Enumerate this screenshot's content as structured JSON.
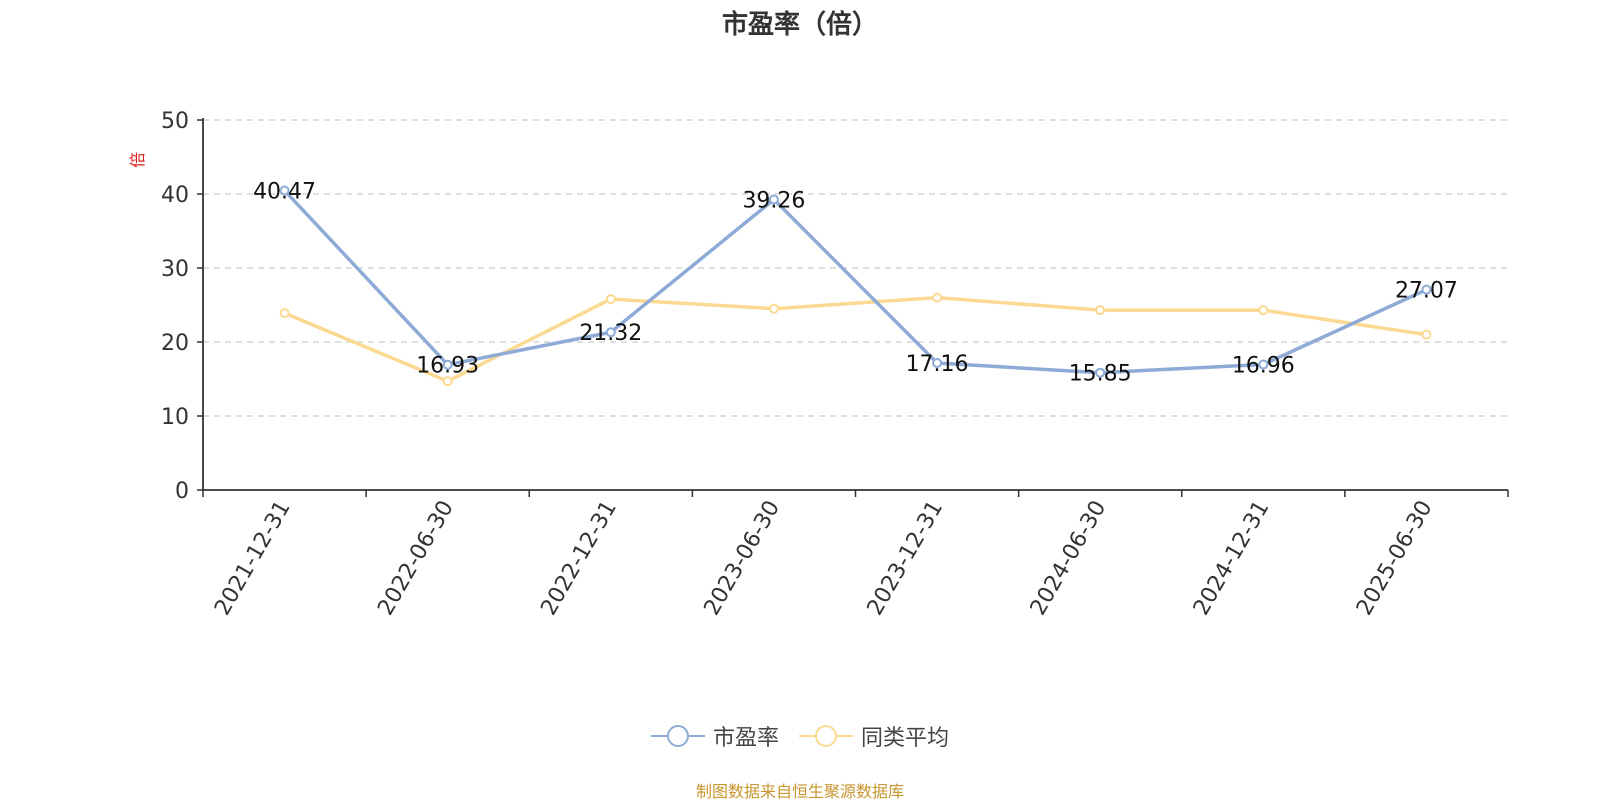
{
  "chart_data": {
    "type": "line",
    "title": "市盈率（倍）",
    "ylabel": "倍",
    "categories": [
      "2021-12-31",
      "2022-06-30",
      "2022-12-31",
      "2023-06-30",
      "2023-12-31",
      "2024-06-30",
      "2024-12-31",
      "2025-06-30"
    ],
    "yticks": [
      "0",
      "10",
      "20",
      "30",
      "40",
      "50"
    ],
    "ylim": [
      0,
      50
    ],
    "grid": true,
    "legend_position": "bottom",
    "series": [
      {
        "name": "市盈率",
        "color": "#8eaad6",
        "values": [
          40.47,
          16.93,
          21.32,
          39.26,
          17.16,
          15.85,
          16.96,
          27.07
        ],
        "labels": [
          "40.47",
          "16.93",
          "21.32",
          "39.26",
          "17.16",
          "15.85",
          "16.96",
          "27.07"
        ]
      },
      {
        "name": "同类平均",
        "color": "#fbd992",
        "values": [
          23.9,
          14.7,
          25.8,
          24.5,
          26.0,
          24.3,
          24.3,
          21.0
        ]
      }
    ]
  },
  "source_note": "制图数据来自恒生聚源数据库"
}
